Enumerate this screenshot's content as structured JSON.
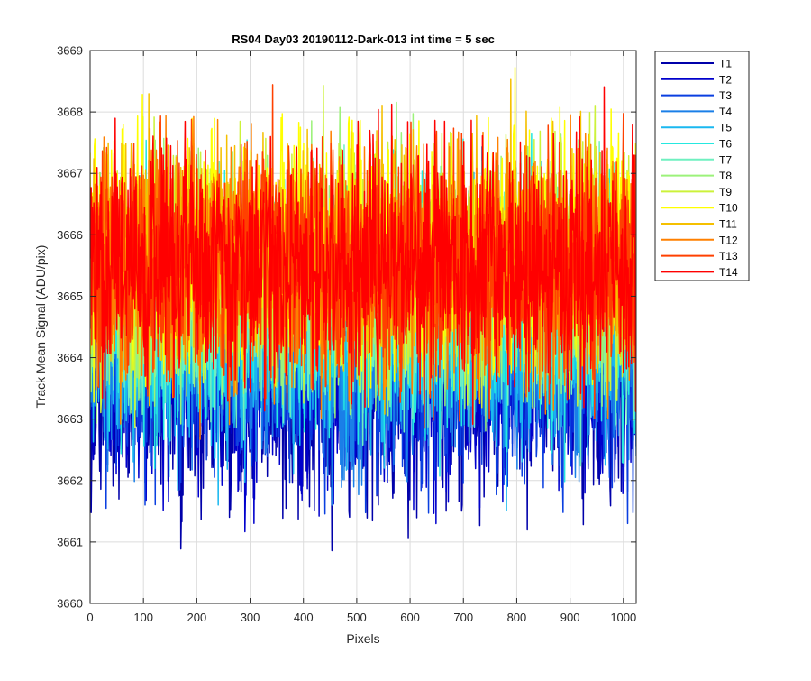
{
  "chart_data": {
    "type": "line",
    "title": "RS04 Day03 20190112-Dark-013 int time = 5 sec",
    "xlabel": "Pixels",
    "ylabel": "Track Mean Signal (ADU/pix)",
    "xlim": [
      0,
      1024
    ],
    "ylim": [
      3660,
      3669
    ],
    "xticks": [
      0,
      100,
      200,
      300,
      400,
      500,
      600,
      700,
      800,
      900,
      1000
    ],
    "yticks": [
      3660,
      3661,
      3662,
      3663,
      3664,
      3665,
      3666,
      3667,
      3668,
      3669
    ],
    "grid": true,
    "legend_position": "outside-top-right",
    "points_per_series": 1024,
    "series": [
      {
        "name": "T1",
        "color": "#0000AA",
        "mean": 3663.6,
        "spread": 1.55
      },
      {
        "name": "T2",
        "color": "#0000CC",
        "mean": 3663.8,
        "spread": 1.55
      },
      {
        "name": "T3",
        "color": "#0A3FE0",
        "mean": 3664.0,
        "spread": 1.55
      },
      {
        "name": "T4",
        "color": "#1A7FE8",
        "mean": 3664.3,
        "spread": 1.55
      },
      {
        "name": "T5",
        "color": "#1AB8F0",
        "mean": 3664.5,
        "spread": 1.55
      },
      {
        "name": "T6",
        "color": "#25E8E0",
        "mean": 3664.8,
        "spread": 1.55
      },
      {
        "name": "T7",
        "color": "#6FF0C0",
        "mean": 3665.0,
        "spread": 1.55
      },
      {
        "name": "T8",
        "color": "#9CF27A",
        "mean": 3665.3,
        "spread": 1.55
      },
      {
        "name": "T9",
        "color": "#CCF23A",
        "mean": 3665.5,
        "spread": 1.55
      },
      {
        "name": "T10",
        "color": "#FFFF00",
        "mean": 3665.8,
        "spread": 1.55
      },
      {
        "name": "T11",
        "color": "#F5C000",
        "mean": 3665.6,
        "spread": 1.55
      },
      {
        "name": "T12",
        "color": "#FF8000",
        "mean": 3665.5,
        "spread": 1.55
      },
      {
        "name": "T13",
        "color": "#FF4000",
        "mean": 3665.5,
        "spread": 1.55
      },
      {
        "name": "T14",
        "color": "#FF0000",
        "mean": 3665.5,
        "spread": 1.55
      }
    ]
  }
}
